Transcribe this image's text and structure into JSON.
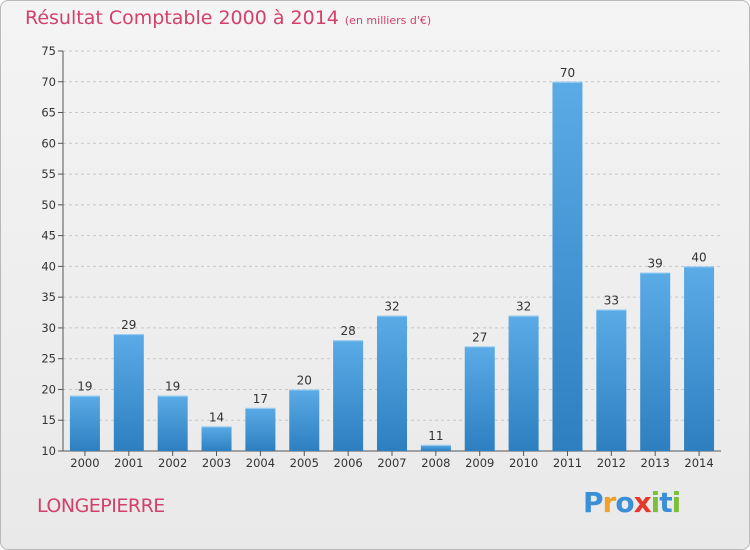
{
  "header": {
    "title": "Résultat Comptable 2000 à 2014",
    "subtitle": "(en milliers d'€)"
  },
  "footer": {
    "place": "LONGEPIERRE",
    "brand": "Proxiti",
    "brand_letters": [
      {
        "ch": "P",
        "color": "#3b8fd6"
      },
      {
        "ch": "r",
        "color": "#f0a12a"
      },
      {
        "ch": "o",
        "color": "#3b8fd6"
      },
      {
        "ch": "x",
        "color": "#e33a2c"
      },
      {
        "ch": "i",
        "color": "#7bbf3a"
      },
      {
        "ch": "t",
        "color": "#3b8fd6"
      },
      {
        "ch": "i",
        "color": "#7bbf3a"
      }
    ]
  },
  "chart_data": {
    "type": "bar",
    "title": "Résultat Comptable 2000 à 2014",
    "subtitle": "(en milliers d'€)",
    "categories": [
      "2000",
      "2001",
      "2002",
      "2003",
      "2004",
      "2005",
      "2006",
      "2007",
      "2008",
      "2009",
      "2010",
      "2011",
      "2012",
      "2013",
      "2014"
    ],
    "values": [
      19,
      29,
      19,
      14,
      17,
      20,
      28,
      32,
      11,
      27,
      32,
      70,
      33,
      39,
      40
    ],
    "ylim": [
      10,
      75
    ],
    "yticks": [
      10,
      15,
      20,
      25,
      30,
      35,
      40,
      45,
      50,
      55,
      60,
      65,
      70,
      75
    ],
    "grid": true,
    "bar_color_top": "#5aabe6",
    "bar_color_bottom": "#2d7fc0"
  }
}
